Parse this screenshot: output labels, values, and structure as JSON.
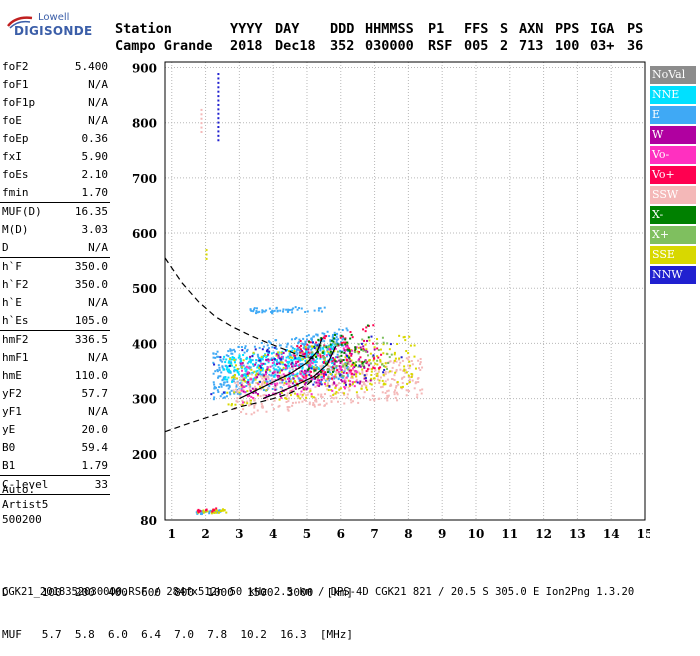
{
  "logo": {
    "top": "Lowell",
    "main": "DIGISONDE"
  },
  "header": {
    "row1": [
      "Station",
      "YYYY",
      "DAY",
      "DDD",
      "HHMMSS",
      "P1",
      "FFS",
      "S",
      "AXN",
      "PPS",
      "IGA",
      "PS"
    ],
    "row2": [
      "Campo Grande",
      "2018",
      "Dec18",
      "352",
      "030000",
      "RSF",
      "005",
      "2",
      "713",
      "100",
      "03+",
      "36"
    ]
  },
  "params": {
    "group1": [
      {
        "name": "foF2",
        "value": "5.400"
      },
      {
        "name": "foF1",
        "value": "N/A"
      },
      {
        "name": "foF1p",
        "value": "N/A"
      },
      {
        "name": "foE",
        "value": "N/A"
      },
      {
        "name": "foEp",
        "value": "0.36"
      },
      {
        "name": "fxI",
        "value": "5.90"
      },
      {
        "name": "foEs",
        "value": "2.10"
      },
      {
        "name": "fmin",
        "value": "1.70"
      }
    ],
    "group2": [
      {
        "name": "MUF(D)",
        "value": "16.35"
      },
      {
        "name": "M(D)",
        "value": "3.03"
      },
      {
        "name": "D",
        "value": "N/A"
      }
    ],
    "group3": [
      {
        "name": "h`F",
        "value": "350.0"
      },
      {
        "name": "h`F2",
        "value": "350.0"
      },
      {
        "name": "h`E",
        "value": "N/A"
      },
      {
        "name": "h`Es",
        "value": "105.0"
      }
    ],
    "group4": [
      {
        "name": "hmF2",
        "value": "336.5"
      },
      {
        "name": "hmF1",
        "value": "N/A"
      },
      {
        "name": "hmE",
        "value": "110.0"
      },
      {
        "name": "yF2",
        "value": "57.7"
      },
      {
        "name": "yF1",
        "value": "N/A"
      },
      {
        "name": "yE",
        "value": "20.0"
      },
      {
        "name": "B0",
        "value": "59.4"
      },
      {
        "name": "B1",
        "value": "1.79"
      }
    ],
    "group5": [
      {
        "name": "C-level",
        "value": "33"
      }
    ]
  },
  "auto": {
    "line1": "Auto:",
    "line2": "Artist5",
    "line3": "500200"
  },
  "legend": [
    {
      "label": "NoVal",
      "color": "#8c8c8c"
    },
    {
      "label": "NNE",
      "color": "#00e0ff"
    },
    {
      "label": "E",
      "color": "#3fa9f5"
    },
    {
      "label": "W",
      "color": "#b000a0"
    },
    {
      "label": "Vo-",
      "color": "#ff30c0"
    },
    {
      "label": "Vo+",
      "color": "#ff0050"
    },
    {
      "label": "SSW",
      "color": "#f4b8b8"
    },
    {
      "label": "X-",
      "color": "#008000"
    },
    {
      "label": "X+",
      "color": "#7fbf5f"
    },
    {
      "label": "SSE",
      "color": "#d8d800"
    },
    {
      "label": "NNW",
      "color": "#2020d0"
    }
  ],
  "muf_table": {
    "row1": "D     100  200  400  600  800  1000  1500  3000  [km]",
    "row2": "MUF   5.7  5.8  6.0  6.4  7.0  7.8  10.2  16.3  [MHz]"
  },
  "footer": "CGK21_2018352030000.RSF / 284fx512h 50 kHz 2.5 km / DPS-4D CGK21 821 / 20.5 S 305.0 E Ion2Png 1.3.20",
  "chart_data": {
    "type": "scatter",
    "xlim": [
      0.8,
      15
    ],
    "ylim": [
      80,
      910
    ],
    "x_ticks": [
      1,
      2,
      3,
      4,
      5,
      6,
      7,
      8,
      9,
      10,
      11,
      12,
      13,
      14,
      15
    ],
    "y_ticks": [
      80,
      200,
      300,
      400,
      500,
      600,
      700,
      800,
      900
    ],
    "grid": true,
    "legend_placement": "right",
    "clusters": [
      {
        "series": "E",
        "x": [
          2.2,
          6.2
        ],
        "y": [
          300,
          430
        ],
        "count": 520
      },
      {
        "series": "NNE",
        "x": [
          2.5,
          5.8
        ],
        "y": [
          330,
          400
        ],
        "count": 260
      },
      {
        "series": "SSW",
        "x": [
          2.8,
          8.4
        ],
        "y": [
          270,
          380
        ],
        "count": 420
      },
      {
        "series": "SSE",
        "x": [
          2.6,
          8.2
        ],
        "y": [
          285,
          420
        ],
        "count": 260
      },
      {
        "series": "W",
        "x": [
          3.0,
          7.0
        ],
        "y": [
          300,
          410
        ],
        "count": 160
      },
      {
        "series": "Vo-",
        "x": [
          3.0,
          6.5
        ],
        "y": [
          290,
          400
        ],
        "count": 130
      },
      {
        "series": "Vo+",
        "x": [
          4.5,
          7.2
        ],
        "y": [
          320,
          440
        ],
        "count": 90
      },
      {
        "series": "X-",
        "x": [
          5.0,
          6.8
        ],
        "y": [
          330,
          440
        ],
        "count": 60
      },
      {
        "series": "X+",
        "x": [
          5.0,
          7.5
        ],
        "y": [
          330,
          420
        ],
        "count": 60
      },
      {
        "series": "NNW",
        "x": [
          2.0,
          7.8
        ],
        "y": [
          300,
          420
        ],
        "count": 50
      },
      {
        "series": "E",
        "x": [
          3.3,
          5.5
        ],
        "y": [
          455,
          470
        ],
        "count": 50
      },
      {
        "series": "E",
        "x": [
          1.7,
          2.5
        ],
        "y": [
          92,
          100
        ],
        "count": 30
      },
      {
        "series": "SSE",
        "x": [
          1.7,
          2.6
        ],
        "y": [
          92,
          102
        ],
        "count": 30
      },
      {
        "series": "Vo+",
        "x": [
          1.7,
          2.3
        ],
        "y": [
          95,
          103
        ],
        "count": 12
      }
    ],
    "vertical_strips": [
      {
        "series": "NNW",
        "x": 2.35,
        "y": [
          770,
          890
        ]
      },
      {
        "series": "SSW",
        "x": 1.85,
        "y": [
          785,
          830
        ]
      },
      {
        "series": "SSE",
        "x": 2.0,
        "y": [
          555,
          575
        ]
      }
    ],
    "profile_dashed": {
      "x": [
        0.8,
        1.3,
        1.8,
        2.3,
        2.8,
        3.3,
        3.8,
        4.3,
        4.8,
        5.2
      ],
      "y": [
        555,
        510,
        475,
        448,
        430,
        415,
        402,
        390,
        378,
        372
      ]
    },
    "profile_lower": {
      "x": [
        0.8,
        1.5,
        2.0,
        2.5,
        3.0,
        3.5,
        4.0,
        4.5,
        5.0,
        5.4
      ],
      "y": [
        240,
        255,
        265,
        275,
        285,
        292,
        300,
        310,
        325,
        345
      ]
    },
    "trace_o": {
      "x": [
        3.0,
        3.5,
        4.0,
        4.5,
        5.0,
        5.3,
        5.45
      ],
      "y": [
        300,
        315,
        330,
        345,
        365,
        385,
        410
      ]
    },
    "trace_x": {
      "x": [
        3.7,
        4.2,
        4.7,
        5.2,
        5.6,
        5.85
      ],
      "y": [
        300,
        312,
        325,
        340,
        362,
        395
      ]
    }
  }
}
